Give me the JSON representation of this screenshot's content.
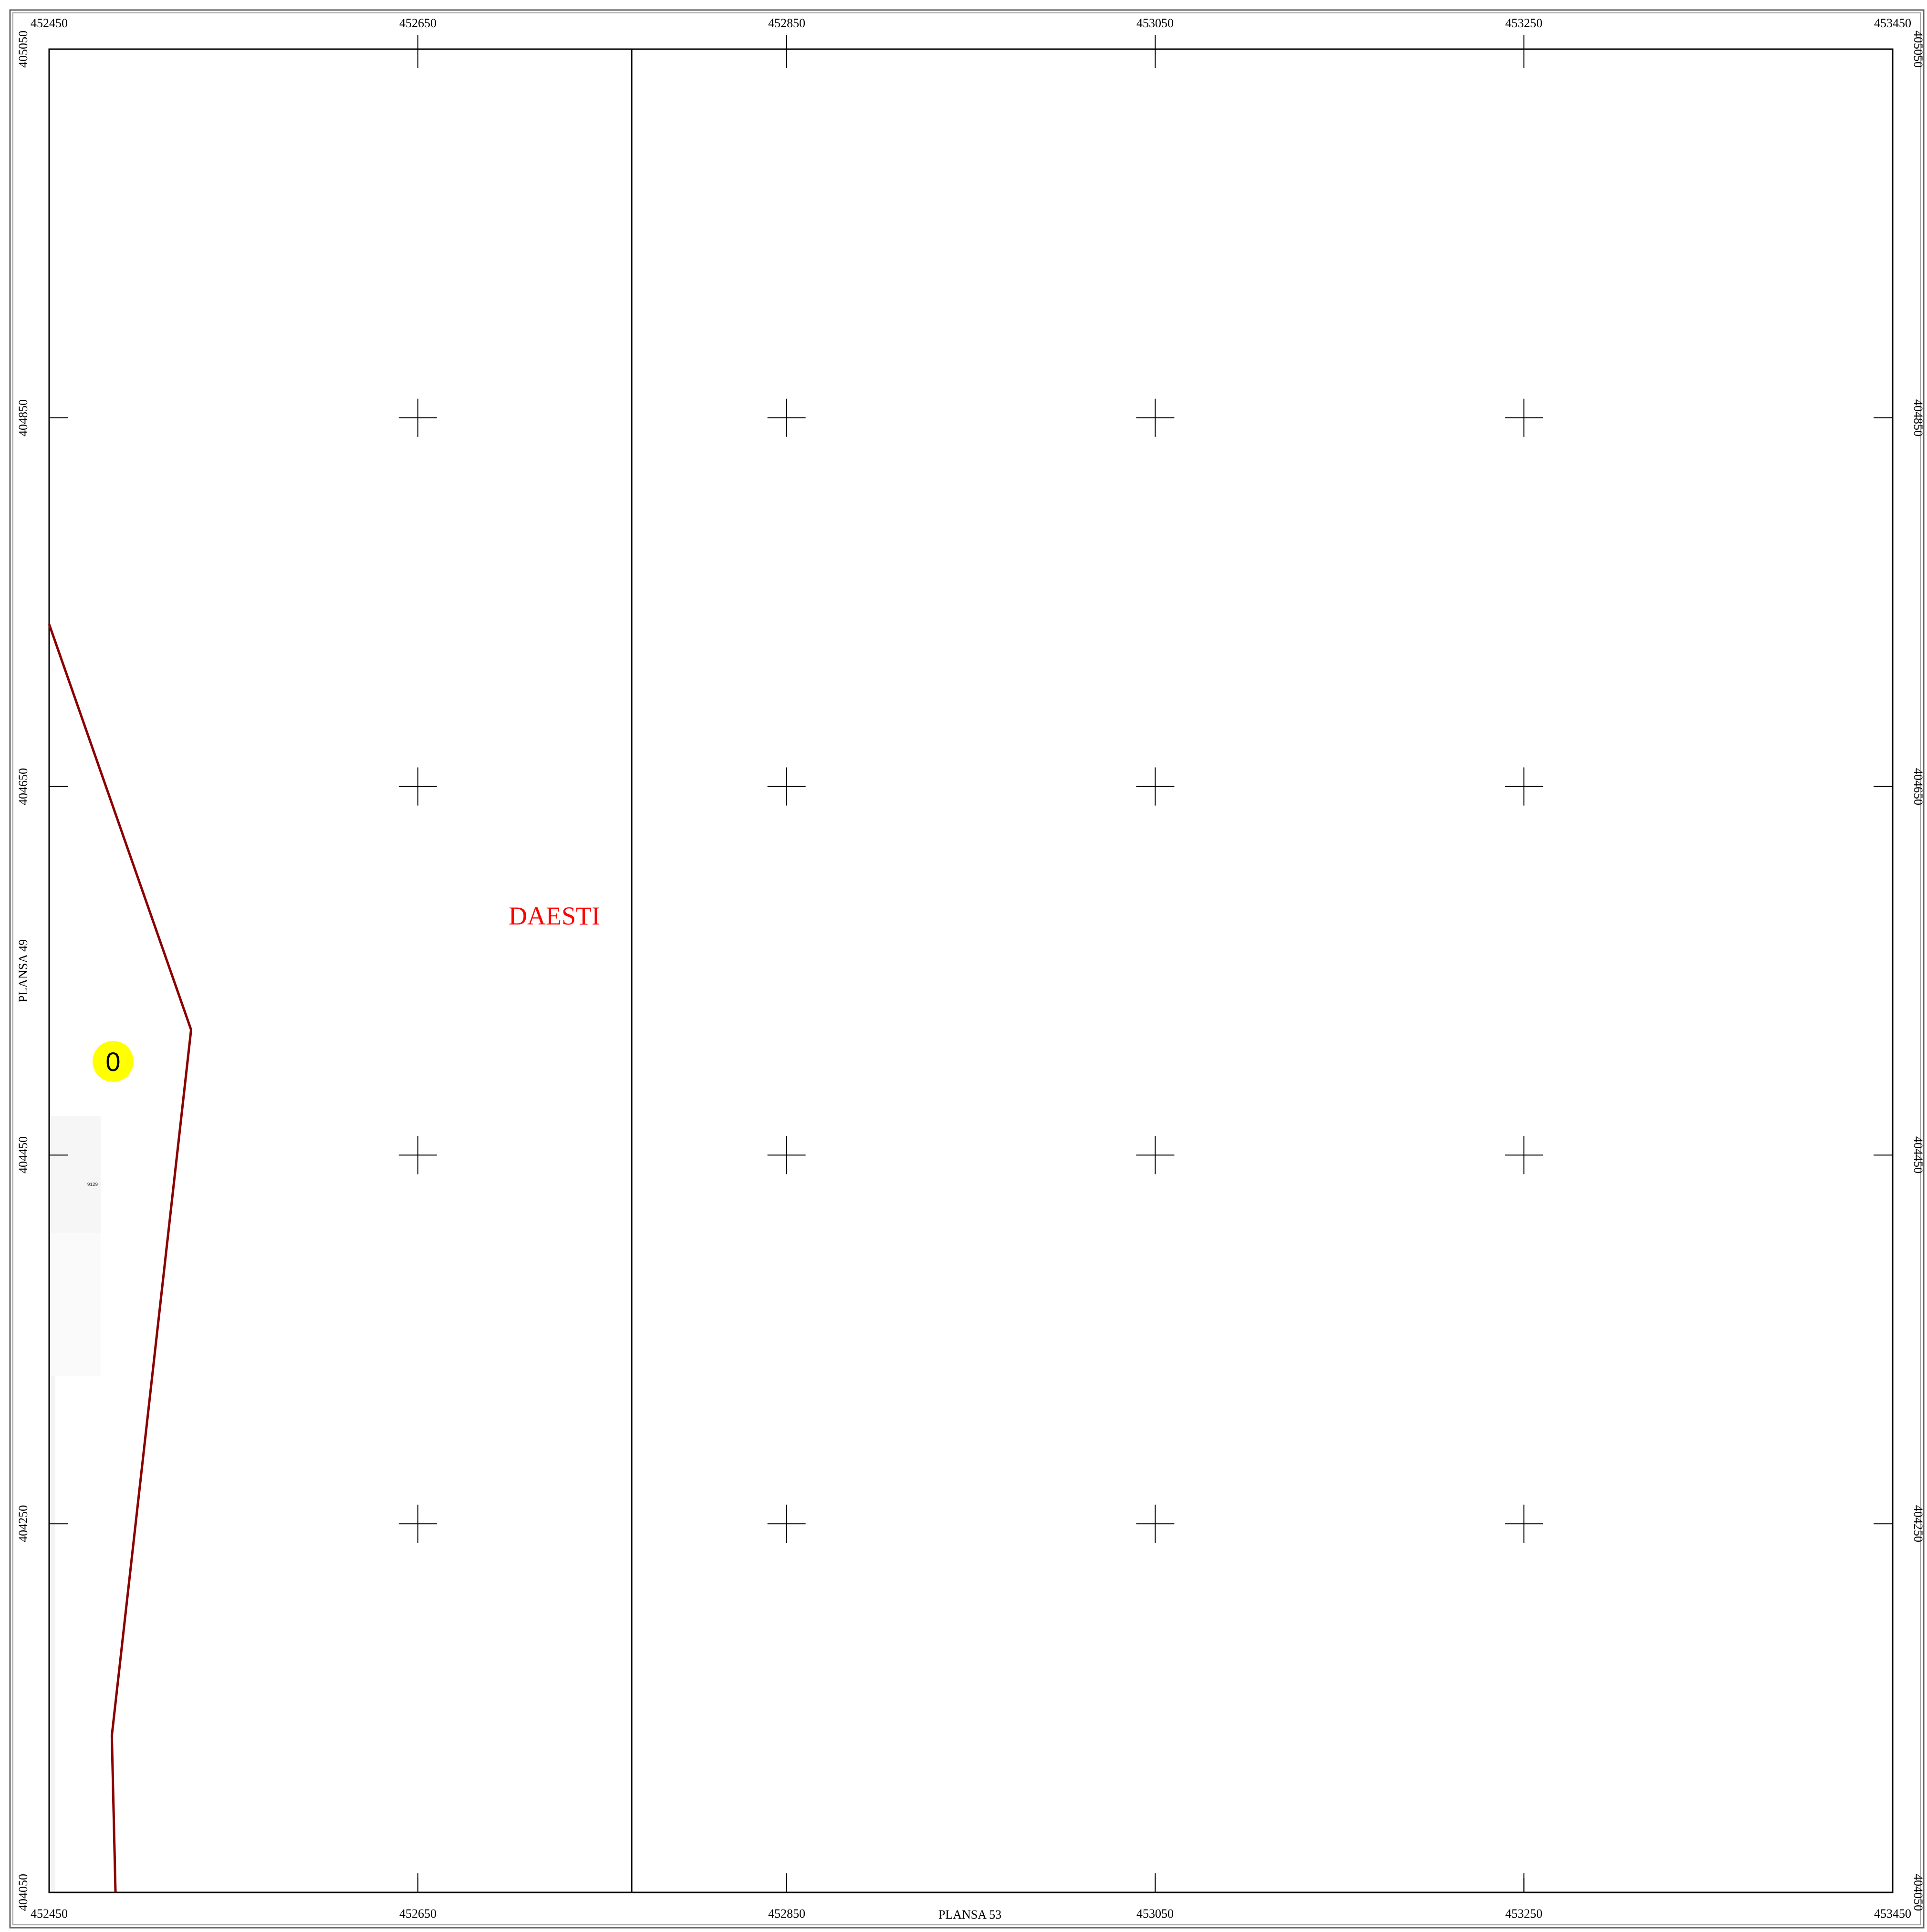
{
  "map": {
    "easting_ticks": [
      "452450",
      "452650",
      "452850",
      "453050",
      "453250",
      "453450"
    ],
    "northing_ticks": [
      "405050",
      "404850",
      "404650",
      "404450",
      "404250",
      "404050"
    ],
    "adjacent_sheets": {
      "west": "PLANSA  49",
      "south": "PLANSA  53"
    },
    "locality": {
      "name": "DAESTI",
      "color": "#ff0000"
    },
    "marker": {
      "label": "0",
      "color": "#ffff00"
    },
    "parcel": {
      "label": "9129"
    },
    "boundary_color": "#8b0000",
    "boundary_coords": [
      [
        452450,
        404738
      ],
      [
        452527,
        404518
      ],
      [
        452484,
        404135
      ],
      [
        452486,
        404050
      ]
    ],
    "section_line_easting": 452766
  }
}
